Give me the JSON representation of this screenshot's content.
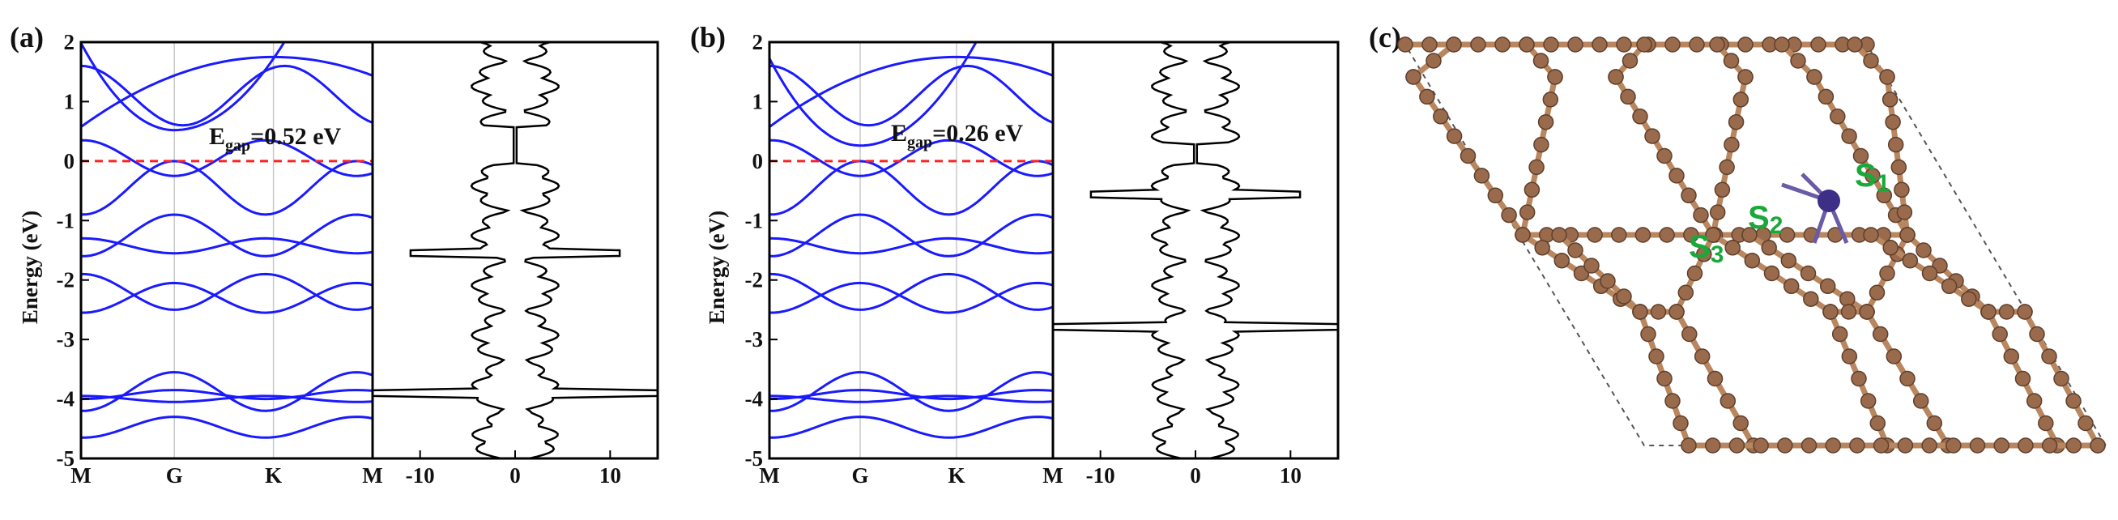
{
  "chart_data": [
    {
      "panel": "(a)",
      "type": "line",
      "xlabel": "",
      "ylabel": "Energy (eV)",
      "ylim": [
        -5,
        2
      ],
      "yticks": [
        "2",
        "1",
        "0",
        "-1",
        "-2",
        "-3",
        "-4",
        "-5"
      ],
      "kpath": [
        "M",
        "G",
        "K",
        "M"
      ],
      "band_color": "#1a1aff",
      "fermi_level": 0,
      "fermi_color": "#ff2020",
      "annotation": "E",
      "annotation_sub": "gap",
      "annotation_rest": "=0.52 eV",
      "gap_eV": 0.52,
      "dos_xticks": [
        "-10",
        "0",
        "10"
      ],
      "dos_xlim": [
        -15,
        15
      ]
    },
    {
      "panel": "(b)",
      "type": "line",
      "xlabel": "",
      "ylabel": "Energy (eV)",
      "ylim": [
        -5,
        2
      ],
      "yticks": [
        "2",
        "1",
        "0",
        "-1",
        "-2",
        "-3",
        "-4",
        "-5"
      ],
      "kpath": [
        "M",
        "G",
        "K",
        "M"
      ],
      "band_color": "#1a1aff",
      "fermi_level": 0,
      "fermi_color": "#ff2020",
      "annotation": "E",
      "annotation_sub": "gap",
      "annotation_rest": "=0.26 eV",
      "gap_eV": 0.26,
      "dos_xticks": [
        "-10",
        "0",
        "10"
      ],
      "dos_xlim": [
        -15,
        15
      ]
    }
  ],
  "structure": {
    "panel": "(c)",
    "sites": [
      "S",
      "S",
      "S"
    ],
    "site_subs": [
      "1",
      "2",
      "3"
    ],
    "atom_color": "#9a6a4c",
    "bond_color": "#b8865f",
    "adatom_color": "#3d2f86"
  }
}
